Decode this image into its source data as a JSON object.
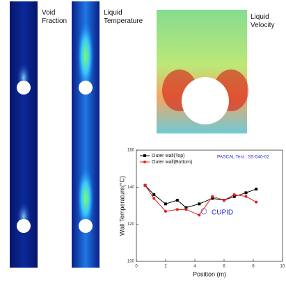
{
  "panels": {
    "void_fraction": "Void\nFraction",
    "liquid_temperature": "Liquid\nTemperature",
    "liquid_velocity": "Liquid\nVelocity"
  },
  "chart_data": {
    "type": "line",
    "x_label": "Position (m)",
    "y_label": "Wall Temperature(°C)",
    "annotations": [
      "PASCAL Test : SS-540-02",
      "CUPID"
    ],
    "x": [
      0.6,
      1.2,
      2,
      2.8,
      3.4,
      4.3,
      5.2,
      6,
      6.7,
      7.5,
      8.2
    ],
    "series": [
      {
        "name": "Outer wall(Top)",
        "color": "#000000",
        "marker": "square",
        "values": [
          141,
          136,
          131,
          133,
          129,
          131,
          134,
          133,
          135,
          137,
          139
        ]
      },
      {
        "name": "Outer wall(Bottom)",
        "color": "#e0201b",
        "marker": "circle",
        "values": [
          141,
          134,
          127,
          128,
          128,
          125,
          135,
          133,
          136,
          135,
          132
        ]
      }
    ],
    "xlim": [
      0,
      10
    ],
    "xticks": [
      0,
      2,
      4,
      6,
      8,
      10
    ],
    "ylim": [
      100,
      160
    ],
    "yticks": [
      100,
      120,
      140,
      160
    ],
    "legend": "upper left"
  }
}
